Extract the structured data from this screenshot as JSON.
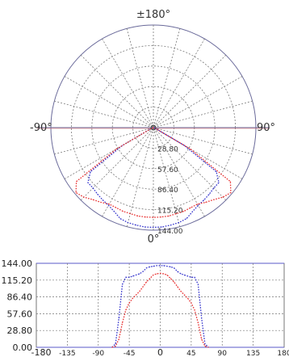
{
  "chart_data": [
    {
      "type": "polar",
      "angle_labels": {
        "top": "±180°",
        "left": "-90°",
        "right": "90°",
        "bottom": "0°"
      },
      "radial_ticks": [
        "28.80",
        "57.60",
        "86.40",
        "115.20",
        "144.00"
      ],
      "radial_tick_values": [
        28.8,
        57.6,
        86.4,
        115.2,
        144.0
      ],
      "rlim": [
        0,
        144
      ],
      "grid": true,
      "series": [
        {
          "color": "#3333cc",
          "style": "dotted",
          "theta": [
            -70,
            -65,
            -60,
            -55,
            -50,
            -45,
            -40,
            -35,
            -30,
            -25,
            -20,
            -15,
            -10,
            -5,
            0,
            5,
            10,
            15,
            20,
            25,
            30,
            35,
            40,
            45,
            50,
            55,
            60,
            65,
            70
          ],
          "r": [
            0,
            6,
            50,
            108,
            120,
            120,
            122,
            124,
            126,
            130,
            136,
            138,
            139,
            140,
            140,
            140,
            139,
            138,
            136,
            130,
            126,
            124,
            122,
            120,
            120,
            108,
            50,
            6,
            0
          ]
        },
        {
          "color": "#e83030",
          "style": "dotted",
          "theta": [
            -70,
            -65,
            -60,
            -55,
            -50,
            -45,
            -40,
            -35,
            -30,
            -25,
            -20,
            -15,
            -10,
            -5,
            0,
            5,
            10,
            15,
            20,
            25,
            30,
            35,
            40,
            45,
            50,
            55,
            60,
            65,
            70
          ],
          "r": [
            0,
            5,
            60,
            132,
            142,
            138,
            132,
            128,
            124,
            124,
            125,
            125,
            126,
            126,
            126,
            126,
            126,
            125,
            125,
            124,
            124,
            128,
            132,
            138,
            142,
            132,
            60,
            5,
            0
          ]
        }
      ]
    },
    {
      "type": "line",
      "x_ticks": [
        "-180",
        "-135",
        "-90",
        "-45",
        "0",
        "45",
        "90",
        "135",
        "180"
      ],
      "y_ticks": [
        "144.00",
        "115.20",
        "86.40",
        "57.60",
        "28.80",
        "0.00"
      ],
      "xlim": [
        -180,
        180
      ],
      "ylim": [
        0,
        144
      ],
      "grid": true,
      "series": [
        {
          "color": "#3333cc",
          "style": "dotted",
          "x": [
            -70,
            -65,
            -60,
            -55,
            -50,
            -45,
            -40,
            -35,
            -30,
            -25,
            -20,
            -15,
            -10,
            -5,
            0,
            5,
            10,
            15,
            20,
            25,
            30,
            35,
            40,
            45,
            50,
            55,
            60,
            65,
            70
          ],
          "y": [
            0,
            6,
            50,
            108,
            120,
            120,
            122,
            124,
            126,
            130,
            136,
            138,
            139,
            140,
            140,
            140,
            139,
            138,
            136,
            130,
            126,
            124,
            122,
            120,
            120,
            108,
            50,
            6,
            0
          ]
        },
        {
          "color": "#e83030",
          "style": "dotted",
          "x": [
            -70,
            -65,
            -60,
            -55,
            -50,
            -45,
            -40,
            -35,
            -30,
            -25,
            -20,
            -15,
            -10,
            -5,
            0,
            5,
            10,
            15,
            20,
            25,
            30,
            35,
            40,
            45,
            50,
            55,
            60,
            65,
            70
          ],
          "y": [
            0,
            2,
            14,
            42,
            64,
            76,
            84,
            90,
            96,
            104,
            112,
            118,
            124,
            126,
            127,
            126,
            124,
            118,
            112,
            104,
            96,
            90,
            84,
            76,
            64,
            42,
            14,
            2,
            0
          ]
        }
      ]
    }
  ]
}
